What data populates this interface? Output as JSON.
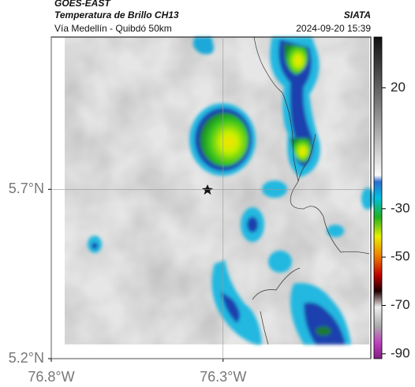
{
  "header": {
    "title": "GOES-EAST",
    "subtitle": "Temperatura de Brillo CH13",
    "source": "SIATA",
    "route": "Vía Medellín - Quibdó 50km",
    "timestamp": "2024-09-20 15:39"
  },
  "map": {
    "xlim": [
      -76.8,
      -75.87
    ],
    "ylim": [
      5.2,
      6.15
    ],
    "xticks": [
      {
        "value": -76.8,
        "label": "76.8°W"
      },
      {
        "value": -76.3,
        "label": "76.3°W"
      }
    ],
    "yticks": [
      {
        "value": 5.7,
        "label": "5.7°N"
      },
      {
        "value": 5.2,
        "label": "5.2°N"
      }
    ],
    "grid": true
  },
  "colorbar": {
    "lim": [
      41,
      -92
    ],
    "ticks": [
      20,
      -30,
      -50,
      -70,
      -90
    ]
  }
}
